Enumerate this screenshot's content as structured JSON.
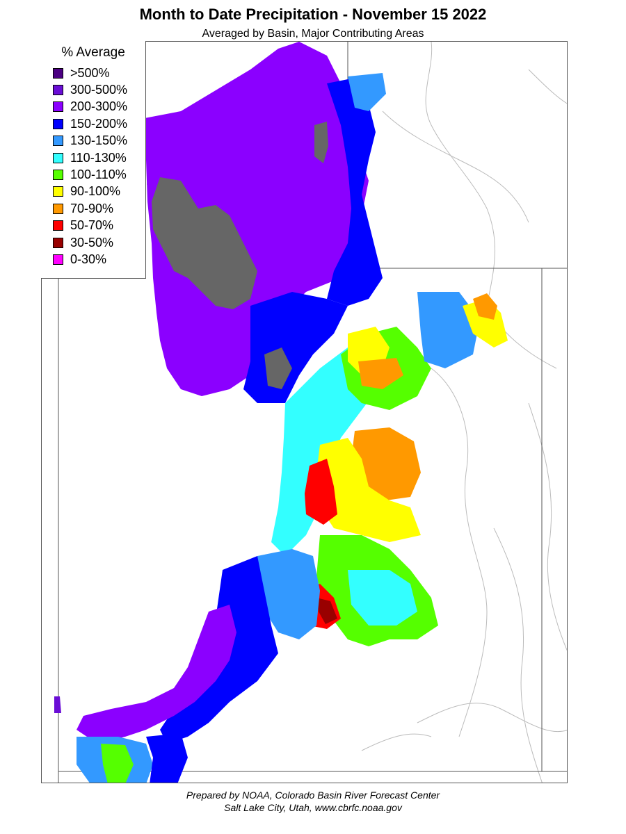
{
  "title": "Month to Date Precipitation - November 15 2022",
  "subtitle": "Averaged by Basin, Major Contributing Areas",
  "legend": {
    "title": "% Average",
    "items": [
      {
        "label": ">500%",
        "color": "#4b0082"
      },
      {
        "label": "300-500%",
        "color": "#6a0dd6"
      },
      {
        "label": "200-300%",
        "color": "#8b00ff"
      },
      {
        "label": "150-200%",
        "color": "#0000ff"
      },
      {
        "label": "130-150%",
        "color": "#3399ff"
      },
      {
        "label": "110-130%",
        "color": "#33ffff"
      },
      {
        "label": "100-110%",
        "color": "#55ff00"
      },
      {
        "label": "90-100%",
        "color": "#ffff00"
      },
      {
        "label": "70-90%",
        "color": "#ff9900"
      },
      {
        "label": "50-70%",
        "color": "#ff0000"
      },
      {
        "label": "30-50%",
        "color": "#990000"
      },
      {
        "label": "0-30%",
        "color": "#ff00ff"
      }
    ]
  },
  "colors": {
    "no_data": "#666666",
    "state_border": "#555555",
    "river": "#aaaaaa"
  },
  "credit": {
    "line1": "Prepared by NOAA, Colorado Basin River Forecast Center",
    "line2": "Salt Lake City, Utah, www.cbrfc.noaa.gov"
  }
}
